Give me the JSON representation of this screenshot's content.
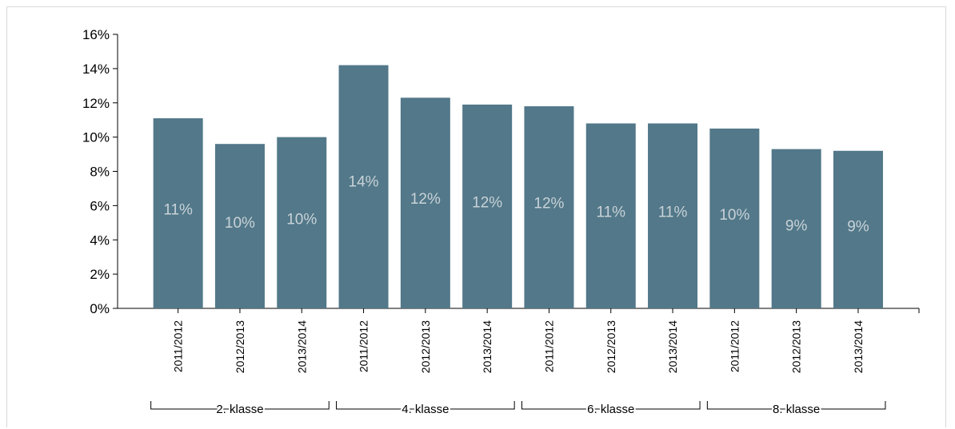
{
  "chart_data": {
    "type": "bar",
    "categories": [
      "2011/2012",
      "2012/2013",
      "2013/2014",
      "2011/2012",
      "2012/2013",
      "2013/2014",
      "2011/2012",
      "2012/2013",
      "2013/2014",
      "2011/2012",
      "2012/2013",
      "2013/2014"
    ],
    "groups": [
      {
        "label": "2. klasse",
        "start": 0,
        "end": 2
      },
      {
        "label": "4. klasse",
        "start": 3,
        "end": 5
      },
      {
        "label": "6. klasse",
        "start": 6,
        "end": 8
      },
      {
        "label": "8. klasse",
        "start": 9,
        "end": 11
      }
    ],
    "values": [
      11.1,
      9.6,
      10.0,
      14.2,
      12.3,
      11.9,
      11.8,
      10.8,
      10.8,
      10.5,
      9.3,
      9.2
    ],
    "data_labels": [
      "11%",
      "10%",
      "10%",
      "14%",
      "12%",
      "12%",
      "12%",
      "11%",
      "11%",
      "10%",
      "9%",
      "9%"
    ],
    "yticks": [
      "0%",
      "2%",
      "4%",
      "6%",
      "8%",
      "10%",
      "12%",
      "14%",
      "16%"
    ],
    "ylim": [
      0,
      16
    ],
    "bar_color": "#527889",
    "label_color": "#c9d2d8",
    "title": "",
    "xlabel": "",
    "ylabel": "",
    "grid": false,
    "legend": "none"
  }
}
